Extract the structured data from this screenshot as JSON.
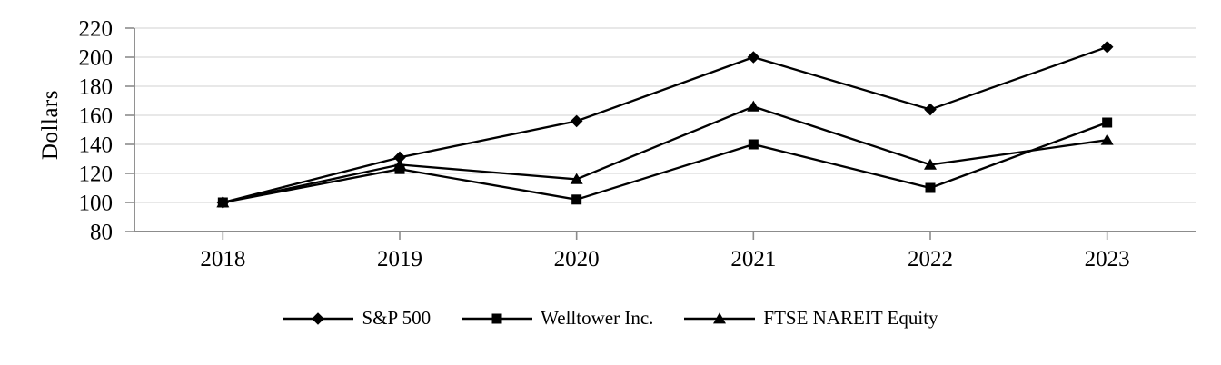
{
  "chart_data": {
    "type": "line",
    "title": "",
    "xlabel": "",
    "ylabel": "Dollars",
    "categories": [
      "2018",
      "2019",
      "2020",
      "2021",
      "2022",
      "2023"
    ],
    "series": [
      {
        "name": "S&P 500",
        "marker": "diamond",
        "values": [
          100,
          131,
          156,
          200,
          164,
          207
        ]
      },
      {
        "name": "Welltower Inc.",
        "marker": "square",
        "values": [
          100,
          123,
          102,
          140,
          110,
          155
        ]
      },
      {
        "name": "FTSE NAREIT Equity",
        "marker": "triangle",
        "values": [
          100,
          126,
          116,
          166,
          126,
          143
        ]
      }
    ],
    "ylim": [
      80,
      220
    ],
    "yticks": [
      80,
      100,
      120,
      140,
      160,
      180,
      200,
      220
    ],
    "grid": true,
    "legend_position": "bottom",
    "z_order": [
      0,
      2,
      1
    ],
    "line_color": "#000000",
    "grid_color": "#dbdbdb",
    "axis_color": "#8c8c8c",
    "text_color": "#000000",
    "background_color": "#ffffff"
  }
}
